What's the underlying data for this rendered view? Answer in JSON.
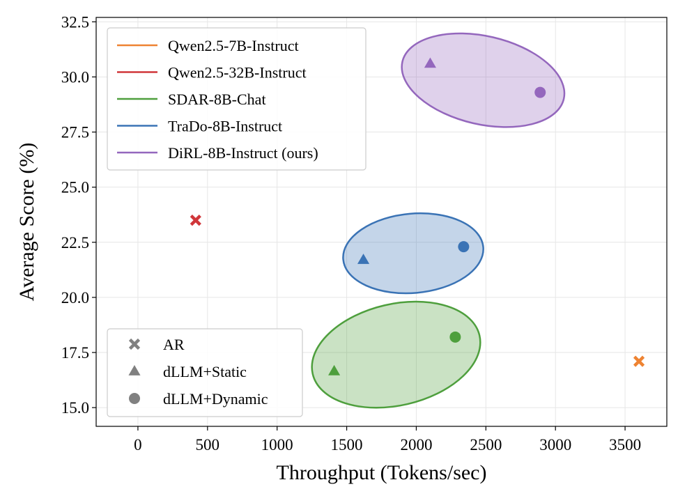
{
  "chart_data": {
    "type": "scatter",
    "title": "",
    "xlabel": "Throughput (Tokens/sec)",
    "ylabel": "Average Score (%)",
    "xlim": [
      -300,
      3800
    ],
    "ylim": [
      14.15,
      32.7
    ],
    "xticks": [
      0,
      500,
      1000,
      1500,
      2000,
      2500,
      3000,
      3500
    ],
    "yticks": [
      15.0,
      17.5,
      20.0,
      22.5,
      25.0,
      27.5,
      30.0,
      32.5
    ],
    "xtick_labels": [
      "0",
      "500",
      "1000",
      "1500",
      "2000",
      "2500",
      "3000",
      "3500"
    ],
    "ytick_labels": [
      "15.0",
      "17.5",
      "20.0",
      "22.5",
      "25.0",
      "27.5",
      "30.0",
      "32.5"
    ],
    "grid": true,
    "series": [
      {
        "name": "Qwen2.5-7B-Instruct",
        "color": "#ee8332",
        "points": [
          {
            "method": "AR",
            "x": 3600,
            "y": 17.1
          }
        ],
        "cluster": null
      },
      {
        "name": "Qwen2.5-32B-Instruct",
        "color": "#d0363a",
        "points": [
          {
            "method": "AR",
            "x": 415,
            "y": 23.5
          }
        ],
        "cluster": null
      },
      {
        "name": "SDAR-8B-Chat",
        "color": "#4e9f3d",
        "points": [
          {
            "method": "dLLM+Static",
            "x": 1410,
            "y": 16.65
          },
          {
            "method": "dLLM+Dynamic",
            "x": 2280,
            "y": 18.2
          }
        ],
        "cluster": {
          "cx": 1855,
          "cy": 17.4,
          "rx": 615,
          "ry": 2.3,
          "angle": -13
        }
      },
      {
        "name": "TraDo-8B-Instruct",
        "color": "#3a73b5",
        "points": [
          {
            "method": "dLLM+Static",
            "x": 1620,
            "y": 21.7
          },
          {
            "method": "dLLM+Dynamic",
            "x": 2340,
            "y": 22.3
          }
        ],
        "cluster": {
          "cx": 1978,
          "cy": 22.0,
          "rx": 505,
          "ry": 1.8,
          "angle": -5
        }
      },
      {
        "name": "DiRL-8B-Instruct (ours)",
        "color": "#9467bd",
        "points": [
          {
            "method": "dLLM+Static",
            "x": 2100,
            "y": 30.6
          },
          {
            "method": "dLLM+Dynamic",
            "x": 2890,
            "y": 29.3
          }
        ],
        "cluster": {
          "cx": 2480,
          "cy": 29.85,
          "rx": 595,
          "ry": 2.0,
          "angle": 13
        }
      }
    ],
    "legend_models": {
      "placement": "upper-left",
      "entries": [
        "Qwen2.5-7B-Instruct",
        "Qwen2.5-32B-Instruct",
        "SDAR-8B-Chat",
        "TraDo-8B-Instruct",
        "DiRL-8B-Instruct (ours)"
      ]
    },
    "legend_methods": {
      "placement": "lower-left",
      "marker_color": "#808080",
      "entries": [
        {
          "label": "AR",
          "marker": "x"
        },
        {
          "label": "dLLM+Static",
          "marker": "triangle"
        },
        {
          "label": "dLLM+Dynamic",
          "marker": "circle"
        }
      ]
    }
  }
}
